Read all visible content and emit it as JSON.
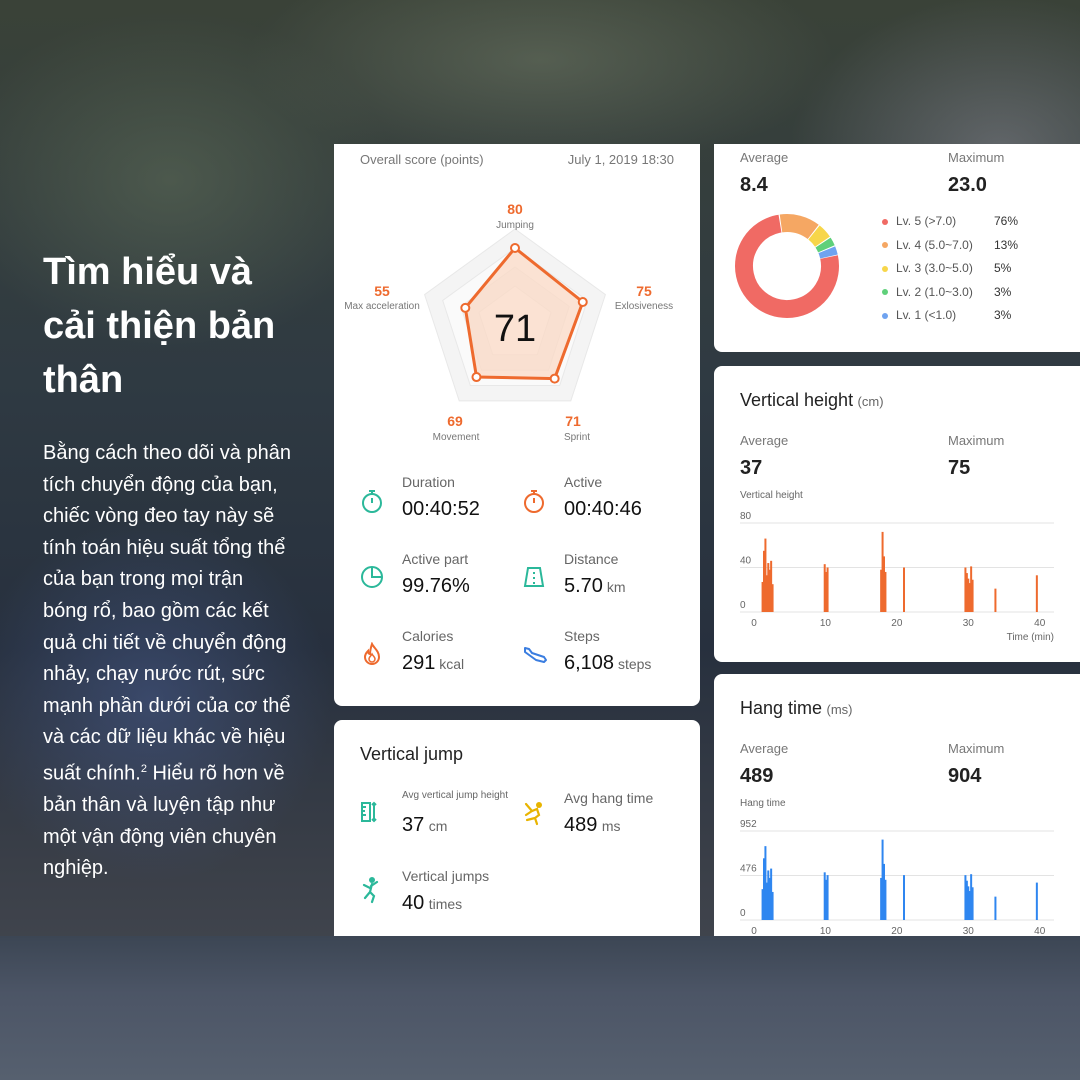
{
  "headline": "Tìm hiểu và cải thiện bản thân",
  "body": "Bằng cách theo dõi và phân tích chuyển động của bạn, chiếc vòng đeo tay này sẽ tính toán hiệu suất tổng thể của bạn trong mọi trận bóng rổ, bao gồm các kết quả chi tiết về chuyển động nhảy, chạy nước rút, sức mạnh phần dưới của cơ thể và các dữ liệu khác về hiệu suất chính.",
  "body_sup": "2",
  "body_tail": " Hiểu rõ hơn về bản thân và luyện tập như một vận động viên chuyên nghiệp.",
  "overall": {
    "title": "Overall score (points)",
    "date": "July 1, 2019 18:30",
    "score": "71",
    "axes": [
      {
        "label": "Jumping",
        "value": "80"
      },
      {
        "label": "Exlosiveness",
        "value": "75"
      },
      {
        "label": "Sprint",
        "value": "71"
      },
      {
        "label": "Movement",
        "value": "69"
      },
      {
        "label": "Max acceleration",
        "value": "55"
      }
    ],
    "colors": {
      "accent": "#ee6a2e",
      "fill": "#fbd9c6"
    }
  },
  "stats": [
    {
      "icon": "stopwatch-icon",
      "label": "Duration",
      "value": "00:40:52",
      "unit": "",
      "color": "#2bb89a"
    },
    {
      "icon": "stopwatch-icon",
      "label": "Active",
      "value": "00:40:46",
      "unit": "",
      "color": "#ee6a2e"
    },
    {
      "icon": "pie-icon",
      "label": "Active part",
      "value": "99.76%",
      "unit": "",
      "color": "#2bb89a"
    },
    {
      "icon": "court-icon",
      "label": "Distance",
      "value": "5.70",
      "unit": "km",
      "color": "#2bb89a"
    },
    {
      "icon": "flame-icon",
      "label": "Calories",
      "value": "291",
      "unit": "kcal",
      "color": "#ee6a2e"
    },
    {
      "icon": "shoe-icon",
      "label": "Steps",
      "value": "6,108",
      "unit": "steps",
      "color": "#3a7de0"
    }
  ],
  "vertical_jump": {
    "title": "Vertical jump",
    "items": [
      {
        "icon": "ruler-icon",
        "label": "Avg vertical jump height",
        "value": "37",
        "unit": "cm",
        "color": "#2bb89a"
      },
      {
        "icon": "player-jump-icon",
        "label": "Avg hang time",
        "value": "489",
        "unit": "ms",
        "color": "#e8b400"
      },
      {
        "icon": "jumper-icon",
        "label": "Vertical jumps",
        "value": "40",
        "unit": "times",
        "color": "#2bb89a"
      }
    ]
  },
  "intensity": {
    "average_label": "Average",
    "average": "8.4",
    "max_label": "Maximum",
    "max": "23.0",
    "levels": [
      {
        "label": "Lv. 5 (>7.0)",
        "pct": "76%",
        "value": 76,
        "color": "#f06a64"
      },
      {
        "label": "Lv. 4 (5.0~7.0)",
        "pct": "13%",
        "value": 13,
        "color": "#f5a763"
      },
      {
        "label": "Lv. 3 (3.0~5.0)",
        "pct": "5%",
        "value": 5,
        "color": "#f7d64a"
      },
      {
        "label": "Lv. 2 (1.0~3.0)",
        "pct": "3%",
        "value": 3,
        "color": "#5fd07a"
      },
      {
        "label": "Lv. 1 (<1.0)",
        "pct": "3%",
        "value": 3,
        "color": "#6fa3f0"
      }
    ]
  },
  "vertical_height": {
    "title": "Vertical height",
    "title_unit": "(cm)",
    "average_label": "Average",
    "average": "37",
    "max_label": "Maximum",
    "max": "75",
    "chart_label": "Vertical height",
    "time_label": "Time (min)",
    "color": "#ee6a2e"
  },
  "hang_time": {
    "title": "Hang time",
    "title_unit": "(ms)",
    "average_label": "Average",
    "average": "489",
    "max_label": "Maximum",
    "max": "904",
    "chart_label": "Hang time",
    "color": "#2f86f0"
  },
  "chart_data": [
    {
      "type": "bar",
      "title": "Vertical height",
      "ylabel": "Vertical height",
      "xlabel": "Time (min)",
      "xticks": [
        0,
        10,
        20,
        30,
        40
      ],
      "yticks": [
        0,
        40,
        80
      ],
      "xlim": [
        0,
        42
      ],
      "ylim": [
        0,
        80
      ],
      "x": [
        1.2,
        1.4,
        1.6,
        1.8,
        2.0,
        2.2,
        2.4,
        2.6,
        9.9,
        10.1,
        10.3,
        17.8,
        18.0,
        18.2,
        18.4,
        21.0,
        29.6,
        29.8,
        30.0,
        30.2,
        30.4,
        30.6,
        33.8,
        39.6
      ],
      "values": [
        27,
        55,
        66,
        33,
        44,
        38,
        46,
        25,
        43,
        36,
        40,
        38,
        72,
        50,
        36,
        40,
        40,
        35,
        30,
        26,
        41,
        29,
        21,
        33
      ]
    },
    {
      "type": "bar",
      "title": "Hang time",
      "ylabel": "Hang time",
      "xticks": [
        0,
        10,
        20,
        30,
        40
      ],
      "yticks": [
        0,
        476,
        952
      ],
      "xlim": [
        0,
        42
      ],
      "ylim": [
        0,
        952
      ],
      "x": [
        1.2,
        1.4,
        1.6,
        1.8,
        2.0,
        2.2,
        2.4,
        2.6,
        9.9,
        10.1,
        10.3,
        17.8,
        18.0,
        18.2,
        18.4,
        21.0,
        29.6,
        29.8,
        30.0,
        30.2,
        30.4,
        30.6,
        33.8,
        39.6
      ],
      "values": [
        330,
        660,
        790,
        400,
        530,
        450,
        550,
        300,
        510,
        430,
        480,
        450,
        860,
        600,
        430,
        480,
        480,
        420,
        360,
        310,
        490,
        350,
        250,
        400
      ]
    }
  ]
}
